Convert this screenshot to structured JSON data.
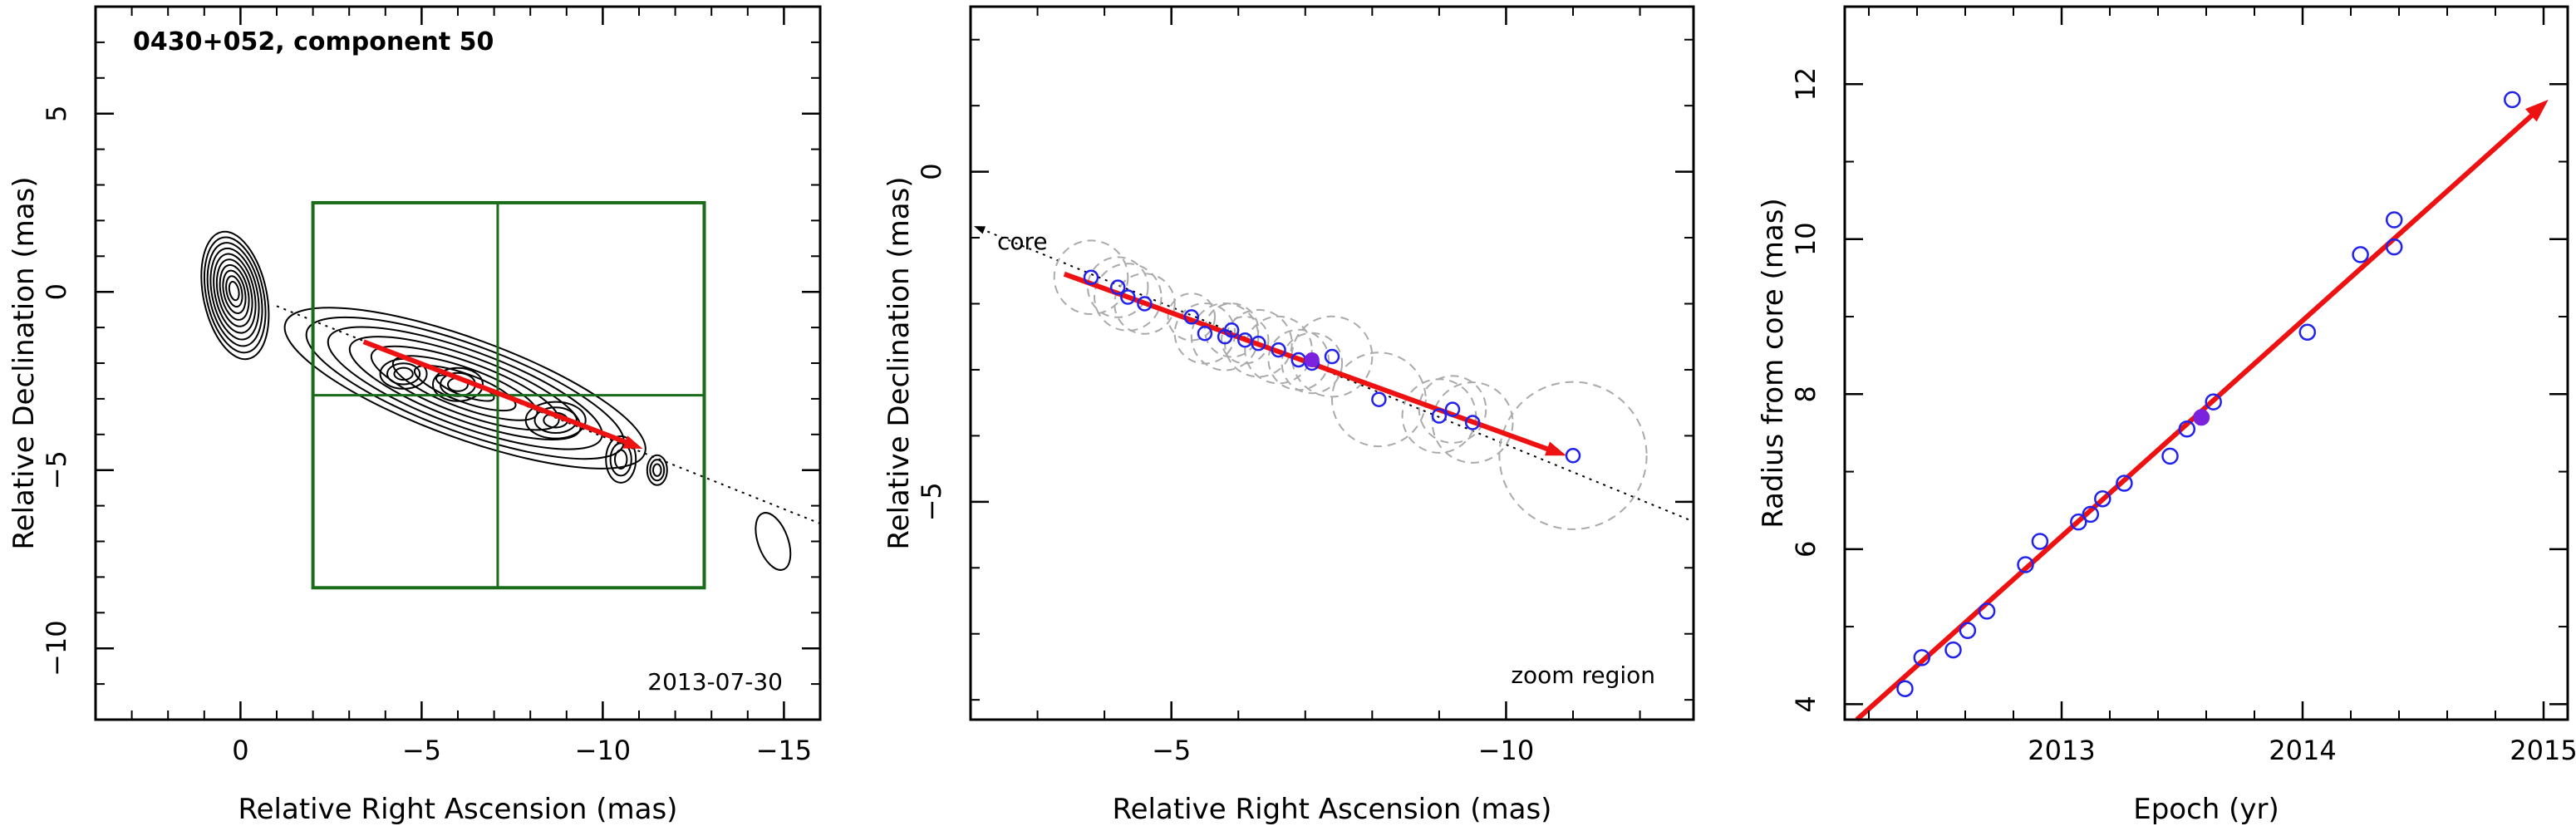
{
  "chart_data": [
    {
      "type": "contour",
      "title": "0430+052, component 50",
      "date_label": "2013-07-30",
      "xlabel": "Relative Right Ascension (mas)",
      "ylabel": "Relative Declination (mas)",
      "xlim": [
        4,
        -16
      ],
      "ylim": [
        -12,
        8
      ],
      "x_ticks": [
        0,
        -5,
        -10,
        -15
      ],
      "x_tick_labels": [
        "0",
        "−5",
        "−10",
        "−15"
      ],
      "y_ticks": [
        5,
        0,
        -5,
        -10
      ],
      "y_tick_labels": [
        "5",
        "0",
        "−5",
        "−10"
      ],
      "zoom_box": {
        "x_range": [
          -2,
          -12.8
        ],
        "y_range": [
          2.5,
          -8.3
        ]
      },
      "crosshair": {
        "x": -7.1,
        "y": -2.9
      },
      "motion_vector": {
        "from": [
          -3.4,
          -1.4
        ],
        "to": [
          -11.1,
          -4.4
        ]
      },
      "jet_axis": {
        "from": [
          -1,
          -0.4
        ],
        "to": [
          -16,
          -6.5
        ]
      },
      "contour_colors": {
        "contour": "#000000",
        "box": "#1a6b1a",
        "vector": "#ee1111"
      }
    },
    {
      "type": "scatter",
      "note": "zoom region",
      "core_label": "core",
      "xlabel": "Relative Right Ascension (mas)",
      "ylabel": "Relative Declination (mas)",
      "xlim": [
        -2,
        -12.8
      ],
      "ylim": [
        -8.3,
        2.5
      ],
      "x_ticks": [
        -5,
        -10
      ],
      "x_tick_labels": [
        "−5",
        "−10"
      ],
      "y_ticks": [
        0,
        -5
      ],
      "y_tick_labels": [
        "0",
        "−5"
      ],
      "points": [
        {
          "x": -3.8,
          "y": -1.6,
          "r": 0.55
        },
        {
          "x": -4.2,
          "y": -1.75,
          "r": 0.45
        },
        {
          "x": -4.35,
          "y": -1.9,
          "r": 0.5
        },
        {
          "x": -4.6,
          "y": -2.0,
          "r": 0.45
        },
        {
          "x": -5.3,
          "y": -2.2,
          "r": 0.35
        },
        {
          "x": -5.5,
          "y": -2.45,
          "r": 0.45
        },
        {
          "x": -5.8,
          "y": -2.5,
          "r": 0.5
        },
        {
          "x": -5.9,
          "y": -2.4,
          "r": 0.4
        },
        {
          "x": -6.1,
          "y": -2.55,
          "r": 0.35
        },
        {
          "x": -6.3,
          "y": -2.6,
          "r": 0.5
        },
        {
          "x": -6.6,
          "y": -2.7,
          "r": 0.5
        },
        {
          "x": -6.9,
          "y": -2.85,
          "r": 0.45
        },
        {
          "x": -7.1,
          "y": -2.9,
          "r": 0.45
        },
        {
          "x": -7.4,
          "y": -2.8,
          "r": 0.6
        },
        {
          "x": -8.1,
          "y": -3.45,
          "r": 0.7
        },
        {
          "x": -9.0,
          "y": -3.7,
          "r": 0.55
        },
        {
          "x": -9.2,
          "y": -3.6,
          "r": 0.5
        },
        {
          "x": -9.5,
          "y": -3.8,
          "r": 0.6
        },
        {
          "x": -11.0,
          "y": -4.3,
          "r": 1.1
        }
      ],
      "highlight_point": {
        "x": -7.1,
        "y": -2.85
      },
      "motion_vector": {
        "from": [
          -3.4,
          -1.55
        ],
        "to": [
          -10.9,
          -4.3
        ]
      },
      "jet_axis": {
        "from": [
          -2.0,
          -0.8
        ],
        "to": [
          -12.8,
          -5.3
        ]
      },
      "colors": {
        "point": "#2222ee",
        "highlight": "#7a22dd",
        "circle": "#aaaaaa",
        "vector": "#ee1111"
      }
    },
    {
      "type": "scatter",
      "xlabel": "Epoch (yr)",
      "ylabel": "Radius from core (mas)",
      "xlim": [
        2012.1,
        2015.1
      ],
      "ylim": [
        3.8,
        13
      ],
      "x_ticks": [
        2013,
        2014,
        2015
      ],
      "x_tick_labels": [
        "2013",
        "2014",
        "2015"
      ],
      "y_ticks": [
        4,
        6,
        8,
        10,
        12
      ],
      "y_tick_labels": [
        "4",
        "6",
        "8",
        "10",
        "12"
      ],
      "points": [
        {
          "x": 2012.35,
          "y": 4.2
        },
        {
          "x": 2012.42,
          "y": 4.6
        },
        {
          "x": 2012.55,
          "y": 4.7
        },
        {
          "x": 2012.61,
          "y": 4.95
        },
        {
          "x": 2012.69,
          "y": 5.2
        },
        {
          "x": 2012.85,
          "y": 5.8
        },
        {
          "x": 2012.91,
          "y": 6.1
        },
        {
          "x": 2013.07,
          "y": 6.35
        },
        {
          "x": 2013.12,
          "y": 6.45
        },
        {
          "x": 2013.17,
          "y": 6.65
        },
        {
          "x": 2013.26,
          "y": 6.85
        },
        {
          "x": 2013.45,
          "y": 7.2
        },
        {
          "x": 2013.52,
          "y": 7.55
        },
        {
          "x": 2013.63,
          "y": 7.9
        },
        {
          "x": 2014.02,
          "y": 8.8
        },
        {
          "x": 2014.24,
          "y": 9.8
        },
        {
          "x": 2014.38,
          "y": 9.9
        },
        {
          "x": 2014.38,
          "y": 10.25
        },
        {
          "x": 2014.87,
          "y": 11.8
        }
      ],
      "highlight_point": {
        "x": 2013.58,
        "y": 7.7
      },
      "fit_line": {
        "from": [
          2012.15,
          3.8
        ],
        "to": [
          2015.02,
          11.8
        ]
      },
      "colors": {
        "point": "#2222ee",
        "highlight": "#7a22dd",
        "vector": "#ee1111"
      }
    }
  ]
}
